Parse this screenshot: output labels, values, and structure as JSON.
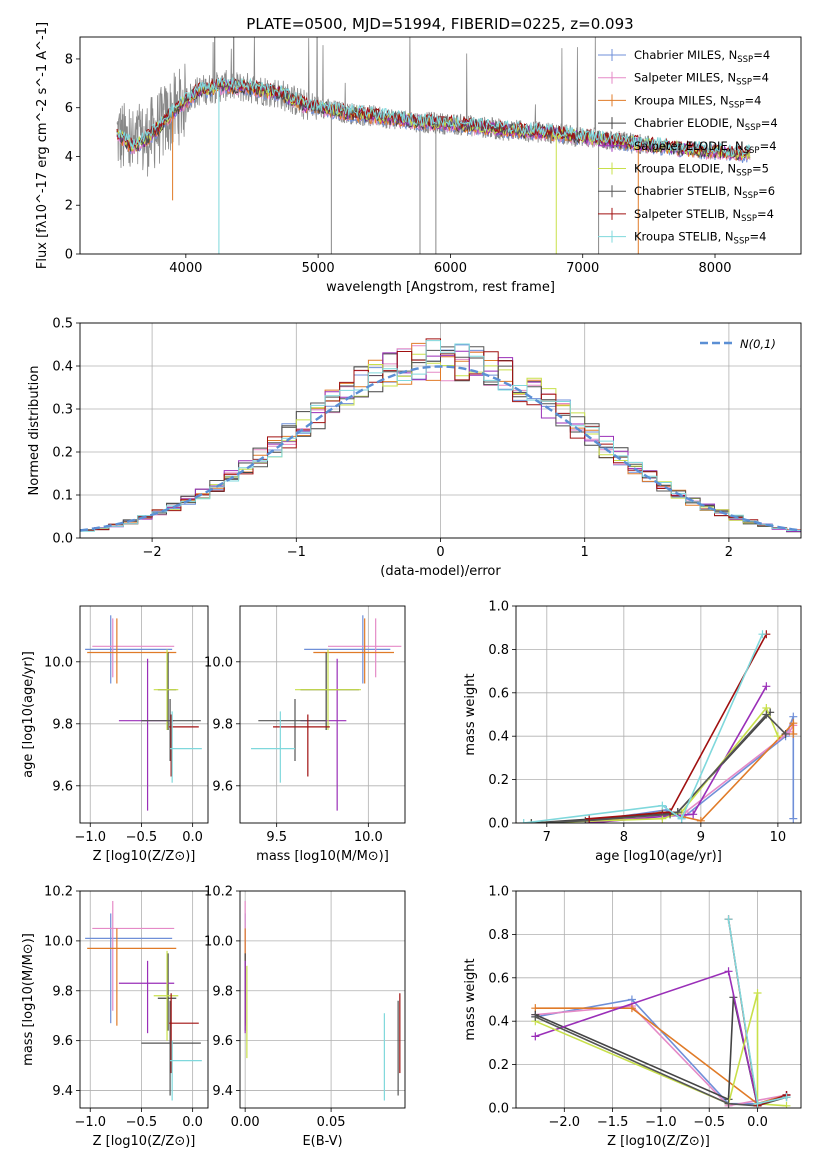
{
  "colors": {
    "Chabrier MILES": "#6f8fd8",
    "Salpeter MILES": "#e58ac7",
    "Kroupa MILES": "#e07b28",
    "Chabrier ELODIE": "#444444",
    "Salpeter ELODIE": "#9a2fb8",
    "Kroupa ELODIE": "#c8e04a",
    "Chabrier STELIB": "#555555",
    "Salpeter STELIB": "#a01010",
    "Kroupa STELIB": "#7fd8dc",
    "data": "#888888"
  },
  "models": [
    {
      "name": "Chabrier MILES",
      "nssp": "4"
    },
    {
      "name": "Salpeter MILES",
      "nssp": "4"
    },
    {
      "name": "Kroupa MILES",
      "nssp": "4"
    },
    {
      "name": "Chabrier ELODIE",
      "nssp": "4"
    },
    {
      "name": "Salpeter ELODIE",
      "nssp": "4"
    },
    {
      "name": "Kroupa ELODIE",
      "nssp": "5"
    },
    {
      "name": "Chabrier STELIB",
      "nssp": "6"
    },
    {
      "name": "Salpeter STELIB",
      "nssp": "4"
    },
    {
      "name": "Kroupa STELIB",
      "nssp": "4"
    }
  ],
  "chart_data": [
    {
      "type": "line",
      "title": "PLATE=0500, MJD=51994, FIBERID=0225, z=0.093",
      "xlabel": "wavelength [Angstrom, rest frame]",
      "ylabel": "Flux [fλ10^-17 erg cm^-2 s^-1 A^-1]",
      "xlim": [
        3200,
        8650
      ],
      "ylim": [
        0,
        8.9
      ],
      "xticks": [
        4000,
        5000,
        6000,
        7000,
        8000
      ],
      "yticks": [
        0,
        2,
        4,
        6,
        8
      ],
      "legend": "top-right",
      "continuum": {
        "x": [
          3480,
          3600,
          3700,
          3800,
          3900,
          4000,
          4100,
          4300,
          4500,
          4700,
          4900,
          5200,
          5500,
          5800,
          6100,
          6400,
          6700,
          7000,
          7300,
          7600,
          7900,
          8200
        ],
        "y": [
          4.9,
          4.4,
          4.7,
          5.2,
          5.8,
          6.3,
          6.7,
          6.9,
          6.8,
          6.6,
          6.1,
          5.8,
          5.6,
          5.4,
          5.3,
          5.1,
          5.0,
          4.8,
          4.6,
          4.4,
          4.25,
          4.1
        ]
      },
      "drops": [
        [
          3900,
          2.2
        ],
        [
          4250,
          0.0
        ],
        [
          5100,
          0.0
        ],
        [
          5770,
          0.0
        ],
        [
          5890,
          0.0
        ],
        [
          6800,
          0.0
        ],
        [
          7120,
          0.0
        ],
        [
          7420,
          0.0
        ]
      ]
    },
    {
      "type": "bar",
      "xlabel": "(data-model)/error",
      "ylabel": "Normed distribution",
      "xlim": [
        -2.5,
        2.5
      ],
      "ylim": [
        0,
        0.5
      ],
      "xticks": [
        -2,
        -1,
        0,
        1,
        2
      ],
      "yticks": [
        0.0,
        0.1,
        0.2,
        0.3,
        0.4,
        0.5
      ],
      "legend_label": "N(0,1)",
      "bin_width": 0.1
    },
    {
      "type": "scatter",
      "xlabel": "Z [log10(Z/Z⊙)]",
      "ylabel": "age [log10(age/yr)]",
      "xlim": [
        -1.1,
        0.15
      ],
      "ylim": [
        9.48,
        10.18
      ],
      "xticks": [
        -1.0,
        -0.5,
        0.0
      ],
      "yticks": [
        9.6,
        9.8,
        10.0
      ],
      "points": [
        {
          "model": "Chabrier MILES",
          "x": -0.8,
          "y": 10.04,
          "xl": -1.05,
          "xh": -0.2,
          "yl": 9.93,
          "yh": 10.15
        },
        {
          "model": "Salpeter MILES",
          "x": -0.78,
          "y": 10.05,
          "xl": -0.98,
          "xh": -0.18,
          "yl": 9.95,
          "yh": 10.14
        },
        {
          "model": "Kroupa MILES",
          "x": -0.74,
          "y": 10.03,
          "xl": -1.03,
          "xh": -0.16,
          "yl": 9.93,
          "yh": 10.14
        },
        {
          "model": "Chabrier ELODIE",
          "x": -0.24,
          "y": 9.91,
          "xl": -0.34,
          "xh": -0.16,
          "yl": 9.78,
          "yh": 10.03
        },
        {
          "model": "Salpeter ELODIE",
          "x": -0.44,
          "y": 9.81,
          "xl": -0.72,
          "xh": -0.18,
          "yl": 9.52,
          "yh": 10.01
        },
        {
          "model": "Kroupa ELODIE",
          "x": -0.25,
          "y": 9.91,
          "xl": -0.38,
          "xh": -0.14,
          "yl": 9.78,
          "yh": 10.04
        },
        {
          "model": "Chabrier STELIB",
          "x": -0.22,
          "y": 9.81,
          "xl": -0.5,
          "xh": 0.08,
          "yl": 9.68,
          "yh": 9.88
        },
        {
          "model": "Salpeter STELIB",
          "x": -0.21,
          "y": 9.79,
          "xl": -0.23,
          "xh": 0.06,
          "yl": 9.63,
          "yh": 9.83
        },
        {
          "model": "Kroupa STELIB",
          "x": -0.2,
          "y": 9.72,
          "xl": -0.22,
          "xh": 0.09,
          "yl": 9.61,
          "yh": 9.84
        }
      ]
    },
    {
      "type": "scatter",
      "xlabel": "mass [log10(M/M⊙)]",
      "xlim": [
        9.3,
        10.2
      ],
      "ylim": [
        9.48,
        10.18
      ],
      "xticks": [
        9.5,
        10.0
      ],
      "yticks": [
        9.6,
        9.8,
        10.0
      ],
      "points": [
        {
          "model": "Chabrier MILES",
          "x": 9.97,
          "y": 10.04,
          "xl": 9.65,
          "xh": 10.12,
          "yl": 9.93,
          "yh": 10.15
        },
        {
          "model": "Salpeter MILES",
          "x": 10.04,
          "y": 10.05,
          "xl": 9.78,
          "xh": 10.18,
          "yl": 9.95,
          "yh": 10.14
        },
        {
          "model": "Kroupa MILES",
          "x": 9.98,
          "y": 10.03,
          "xl": 9.7,
          "xh": 10.14,
          "yl": 9.93,
          "yh": 10.14
        },
        {
          "model": "Chabrier ELODIE",
          "x": 9.77,
          "y": 9.91,
          "xl": 9.63,
          "xh": 9.95,
          "yl": 9.78,
          "yh": 10.03
        },
        {
          "model": "Salpeter ELODIE",
          "x": 9.83,
          "y": 9.81,
          "xl": 9.63,
          "xh": 9.88,
          "yl": 9.52,
          "yh": 10.01
        },
        {
          "model": "Kroupa ELODIE",
          "x": 9.78,
          "y": 9.91,
          "xl": 9.6,
          "xh": 9.96,
          "yl": 9.78,
          "yh": 10.04
        },
        {
          "model": "Chabrier STELIB",
          "x": 9.6,
          "y": 9.81,
          "xl": 9.4,
          "xh": 9.77,
          "yl": 9.68,
          "yh": 9.88
        },
        {
          "model": "Salpeter STELIB",
          "x": 9.67,
          "y": 9.79,
          "xl": 9.48,
          "xh": 9.79,
          "yl": 9.63,
          "yh": 9.83
        },
        {
          "model": "Kroupa STELIB",
          "x": 9.52,
          "y": 9.72,
          "xl": 9.36,
          "xh": 9.6,
          "yl": 9.61,
          "yh": 9.84
        }
      ]
    },
    {
      "type": "line",
      "xlabel": "age [log10(age/yr)]",
      "ylabel": "mass weight",
      "xlim": [
        6.6,
        10.3
      ],
      "ylim": [
        0,
        1.0
      ],
      "xticks": [
        7,
        8,
        9,
        10
      ],
      "yticks": [
        0.0,
        0.2,
        0.4,
        0.6,
        0.8,
        1.0
      ],
      "series": [
        {
          "model": "Chabrier MILES",
          "x": [
            7.55,
            8.55,
            8.75,
            10.1,
            10.2,
            10.2
          ],
          "y": [
            0.01,
            0.06,
            0.02,
            0.4,
            0.49,
            0.02
          ]
        },
        {
          "model": "Salpeter MILES",
          "x": [
            7.55,
            8.5,
            8.8,
            10.15,
            10.2
          ],
          "y": [
            0.01,
            0.03,
            0.05,
            0.42,
            0.45
          ]
        },
        {
          "model": "Kroupa MILES",
          "x": [
            7.55,
            8.5,
            9.0,
            10.2,
            10.2
          ],
          "y": [
            0.0,
            0.05,
            0.01,
            0.46,
            0.41
          ]
        },
        {
          "model": "Chabrier ELODIE",
          "x": [
            6.8,
            8.5,
            8.7,
            9.9
          ],
          "y": [
            0.0,
            0.04,
            0.05,
            0.51
          ]
        },
        {
          "model": "Salpeter ELODIE",
          "x": [
            7.55,
            8.5,
            8.9,
            9.85
          ],
          "y": [
            0.0,
            0.03,
            0.04,
            0.63
          ]
        },
        {
          "model": "Kroupa ELODIE",
          "x": [
            6.8,
            8.5,
            8.75,
            9.85,
            10.0
          ],
          "y": [
            0.0,
            0.02,
            0.05,
            0.53,
            0.4
          ]
        },
        {
          "model": "Chabrier STELIB",
          "x": [
            6.8,
            7.5,
            8.6,
            8.7,
            9.85,
            10.1
          ],
          "y": [
            0.0,
            0.01,
            0.04,
            0.05,
            0.5,
            0.41
          ]
        },
        {
          "model": "Salpeter STELIB",
          "x": [
            7.55,
            8.6,
            9.85
          ],
          "y": [
            0.02,
            0.05,
            0.87
          ]
        },
        {
          "model": "Kroupa STELIB",
          "x": [
            6.7,
            8.5,
            8.75,
            9.8
          ],
          "y": [
            0.0,
            0.08,
            0.02,
            0.87
          ]
        }
      ]
    },
    {
      "type": "scatter",
      "xlabel": "Z [log10(Z/Z⊙)]",
      "ylabel": "mass [log10(M/M⊙)]",
      "xlim": [
        -1.1,
        0.15
      ],
      "ylim": [
        9.33,
        10.2
      ],
      "xticks": [
        -1.0,
        -0.5,
        0.0
      ],
      "yticks": [
        9.4,
        9.6,
        9.8,
        10.0,
        10.2
      ],
      "points": [
        {
          "model": "Chabrier MILES",
          "x": -0.8,
          "y": 10.01,
          "xl": -1.05,
          "xh": -0.2,
          "yl": 9.67,
          "yh": 10.11
        },
        {
          "model": "Salpeter MILES",
          "x": -0.78,
          "y": 10.05,
          "xl": -0.98,
          "xh": -0.18,
          "yl": 9.72,
          "yh": 10.16
        },
        {
          "model": "Kroupa MILES",
          "x": -0.74,
          "y": 9.97,
          "xl": -1.03,
          "xh": -0.16,
          "yl": 9.66,
          "yh": 10.05
        },
        {
          "model": "Chabrier ELODIE",
          "x": -0.24,
          "y": 9.77,
          "xl": -0.34,
          "xh": -0.16,
          "yl": 9.64,
          "yh": 9.95
        },
        {
          "model": "Salpeter ELODIE",
          "x": -0.44,
          "y": 9.83,
          "xl": -0.72,
          "xh": -0.18,
          "yl": 9.63,
          "yh": 9.92
        },
        {
          "model": "Kroupa ELODIE",
          "x": -0.25,
          "y": 9.78,
          "xl": -0.38,
          "xh": -0.14,
          "yl": 9.6,
          "yh": 9.96
        },
        {
          "model": "Chabrier STELIB",
          "x": -0.22,
          "y": 9.59,
          "xl": -0.5,
          "xh": 0.08,
          "yl": 9.38,
          "yh": 9.76
        },
        {
          "model": "Salpeter STELIB",
          "x": -0.21,
          "y": 9.67,
          "xl": -0.23,
          "xh": 0.06,
          "yl": 9.47,
          "yh": 9.79
        },
        {
          "model": "Kroupa STELIB",
          "x": -0.2,
          "y": 9.52,
          "xl": -0.22,
          "xh": 0.09,
          "yl": 9.36,
          "yh": 9.6
        }
      ]
    },
    {
      "type": "scatter",
      "xlabel": "E(B-V)",
      "xlim": [
        -0.003,
        0.093
      ],
      "ylim": [
        9.33,
        10.2
      ],
      "xticks": [
        0.0,
        0.05
      ],
      "yticks": [
        9.4,
        9.6,
        9.8,
        10.0,
        10.2
      ],
      "points": [
        {
          "model": "Chabrier MILES",
          "x": 0.0,
          "y": 10.01,
          "yl": 9.67,
          "yh": 10.11
        },
        {
          "model": "Salpeter MILES",
          "x": 0.0,
          "y": 10.05,
          "yl": 9.72,
          "yh": 10.16
        },
        {
          "model": "Kroupa MILES",
          "x": 0.0,
          "y": 9.97,
          "yl": 9.66,
          "yh": 10.05
        },
        {
          "model": "Chabrier ELODIE",
          "x": 0.0,
          "y": 9.77,
          "yl": 9.64,
          "yh": 9.95
        },
        {
          "model": "Salpeter ELODIE",
          "x": 0.0,
          "y": 9.83,
          "yl": 9.63,
          "yh": 9.92
        },
        {
          "model": "Kroupa ELODIE",
          "x": 0.001,
          "y": 9.78,
          "yl": 9.53,
          "yh": 9.9
        },
        {
          "model": "Chabrier STELIB",
          "x": 0.089,
          "y": 9.59,
          "yl": 9.38,
          "yh": 9.76
        },
        {
          "model": "Salpeter STELIB",
          "x": 0.09,
          "y": 9.67,
          "yl": 9.47,
          "yh": 9.79
        },
        {
          "model": "Kroupa STELIB",
          "x": 0.081,
          "y": 9.52,
          "yl": 9.36,
          "yh": 9.71
        }
      ]
    },
    {
      "type": "line",
      "xlabel": "Z [log10(Z/Z⊙)]",
      "ylabel": "mass weight",
      "xlim": [
        -2.5,
        0.45
      ],
      "ylim": [
        0,
        1.0
      ],
      "xticks": [
        -2.0,
        -1.5,
        -1.0,
        -0.5,
        0.0
      ],
      "yticks": [
        0.0,
        0.2,
        0.4,
        0.6,
        0.8,
        1.0
      ],
      "series": [
        {
          "model": "Chabrier MILES",
          "x": [
            -2.3,
            -1.3,
            -0.3,
            0.0,
            0.3
          ],
          "y": [
            0.42,
            0.5,
            0.02,
            0.02,
            0.06
          ]
        },
        {
          "model": "Salpeter MILES",
          "x": [
            -2.3,
            -1.3,
            -0.3,
            0.3
          ],
          "y": [
            0.43,
            0.47,
            0.01,
            0.06
          ]
        },
        {
          "model": "Kroupa MILES",
          "x": [
            -2.3,
            -1.3,
            0.0,
            0.3
          ],
          "y": [
            0.46,
            0.46,
            0.02,
            0.06
          ]
        },
        {
          "model": "Chabrier ELODIE",
          "x": [
            -2.3,
            -0.3,
            -0.25,
            0.0
          ],
          "y": [
            0.43,
            0.04,
            0.51,
            0.01
          ]
        },
        {
          "model": "Salpeter ELODIE",
          "x": [
            -2.3,
            -0.3,
            0.0,
            0.3
          ],
          "y": [
            0.33,
            0.63,
            0.01,
            0.06
          ]
        },
        {
          "model": "Kroupa ELODIE",
          "x": [
            -2.3,
            -0.3,
            0.0,
            0.0,
            0.3
          ],
          "y": [
            0.4,
            0.02,
            0.53,
            0.02,
            0.01
          ]
        },
        {
          "model": "Chabrier STELIB",
          "x": [
            -2.3,
            -0.3,
            0.0,
            0.3
          ],
          "y": [
            0.42,
            0.02,
            0.01,
            0.05
          ]
        },
        {
          "model": "Salpeter STELIB",
          "x": [
            -0.3,
            0.0,
            0.3
          ],
          "y": [
            0.87,
            0.01,
            0.06
          ]
        },
        {
          "model": "Kroupa STELIB",
          "x": [
            -0.3,
            0.0,
            0.3
          ],
          "y": [
            0.87,
            0.02,
            0.05
          ]
        }
      ]
    }
  ]
}
